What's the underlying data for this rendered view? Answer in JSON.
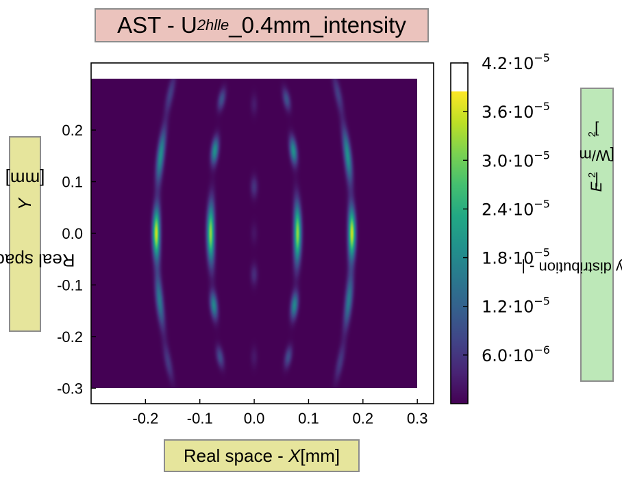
{
  "chart_data": {
    "type": "heatmap",
    "title": {
      "main": "AST - U",
      "sub": "2hlle",
      "rest": "_0.4mm_intensity"
    },
    "xlabel": {
      "prefix": "Real space - ",
      "var": "X",
      "suffix": " [mm]"
    },
    "ylabel": {
      "prefix": "Real space - ",
      "var": "Y",
      "suffix": " [mm]"
    },
    "colorbar_label": {
      "prefix": "Intensity distribution - |",
      "var": "E",
      "mid": "|",
      "sup1": "2",
      "unit_pre": " [W/m",
      "sup2": "2",
      "unit_post": "]"
    },
    "colormap": "viridis",
    "xlim": [
      -0.3,
      0.33
    ],
    "ylim": [
      -0.33,
      0.33
    ],
    "data_extent": {
      "x": [
        -0.3,
        0.3
      ],
      "y": [
        -0.3,
        0.3
      ]
    },
    "x_ticks": [
      -0.2,
      -0.1,
      0.0,
      0.1,
      0.2,
      0.3
    ],
    "x_tick_labels": [
      "-0.2",
      "-0.1",
      "0.0",
      "0.1",
      "0.2",
      "0.3"
    ],
    "y_ticks": [
      0.2,
      0.1,
      0.0,
      -0.1,
      -0.2,
      -0.3
    ],
    "y_tick_labels": [
      "0.2",
      "0.1",
      "0.0",
      "-0.1",
      "-0.2",
      "-0.3"
    ],
    "colorbar_range": [
      0,
      4.2e-05
    ],
    "colorbar_max_filled": 3.85e-05,
    "colorbar_ticks": [
      {
        "value": 4.2e-05,
        "mantissa": "4.2",
        "exp": "−5"
      },
      {
        "value": 3.6e-05,
        "mantissa": "3.6",
        "exp": "−5"
      },
      {
        "value": 3e-05,
        "mantissa": "3.0",
        "exp": "−5"
      },
      {
        "value": 2.4e-05,
        "mantissa": "2.4",
        "exp": "−5"
      },
      {
        "value": 1.8e-05,
        "mantissa": "1.8",
        "exp": "−5"
      },
      {
        "value": 1.2e-05,
        "mantissa": "1.2",
        "exp": "−5"
      },
      {
        "value": 6e-06,
        "mantissa": "6.0",
        "exp": "−6"
      }
    ],
    "fringes": [
      {
        "x": -0.18,
        "curv": 0.35,
        "peak": 3.85e-05,
        "sy": 0.048,
        "segs": [
          {
            "y": 0.0,
            "a": 1.0
          },
          {
            "y": 0.15,
            "a": 0.55,
            "sy": 0.05
          },
          {
            "y": -0.13,
            "a": 0.45,
            "sy": 0.05
          },
          {
            "y": 0.27,
            "a": 0.2,
            "sy": 0.035
          },
          {
            "y": -0.25,
            "a": 0.18,
            "sy": 0.035
          }
        ]
      },
      {
        "x": -0.08,
        "curv": 0.3,
        "peak": 3.5e-05,
        "sy": 0.055,
        "segs": [
          {
            "y": 0.0,
            "a": 1.0
          },
          {
            "y": 0.16,
            "a": 0.6,
            "sy": 0.025
          },
          {
            "y": -0.14,
            "a": 0.55,
            "sy": 0.025
          },
          {
            "y": 0.26,
            "a": 0.3,
            "sy": 0.02
          },
          {
            "y": -0.24,
            "a": 0.28,
            "sy": 0.02
          }
        ]
      },
      {
        "x": 0.0,
        "curv": 0.0,
        "peak": 9e-06,
        "sy": 0.02,
        "segs": [
          {
            "y": 0.09,
            "a": 0.7
          },
          {
            "y": -0.08,
            "a": 0.6
          },
          {
            "y": 0.25,
            "a": 0.35
          },
          {
            "y": -0.24,
            "a": 0.3
          },
          {
            "y": 0.0,
            "a": 0.25
          }
        ]
      },
      {
        "x": 0.08,
        "curv": -0.3,
        "peak": 3.5e-05,
        "sy": 0.055,
        "segs": [
          {
            "y": 0.0,
            "a": 1.0
          },
          {
            "y": 0.16,
            "a": 0.6,
            "sy": 0.025
          },
          {
            "y": -0.14,
            "a": 0.55,
            "sy": 0.025
          },
          {
            "y": 0.26,
            "a": 0.3,
            "sy": 0.02
          },
          {
            "y": -0.24,
            "a": 0.28,
            "sy": 0.02
          }
        ]
      },
      {
        "x": 0.18,
        "curv": -0.35,
        "peak": 3.85e-05,
        "sy": 0.048,
        "segs": [
          {
            "y": 0.0,
            "a": 1.0
          },
          {
            "y": 0.15,
            "a": 0.55,
            "sy": 0.05
          },
          {
            "y": -0.13,
            "a": 0.45,
            "sy": 0.05
          },
          {
            "y": 0.27,
            "a": 0.2,
            "sy": 0.035
          },
          {
            "y": -0.25,
            "a": 0.18,
            "sy": 0.035
          }
        ]
      }
    ]
  }
}
